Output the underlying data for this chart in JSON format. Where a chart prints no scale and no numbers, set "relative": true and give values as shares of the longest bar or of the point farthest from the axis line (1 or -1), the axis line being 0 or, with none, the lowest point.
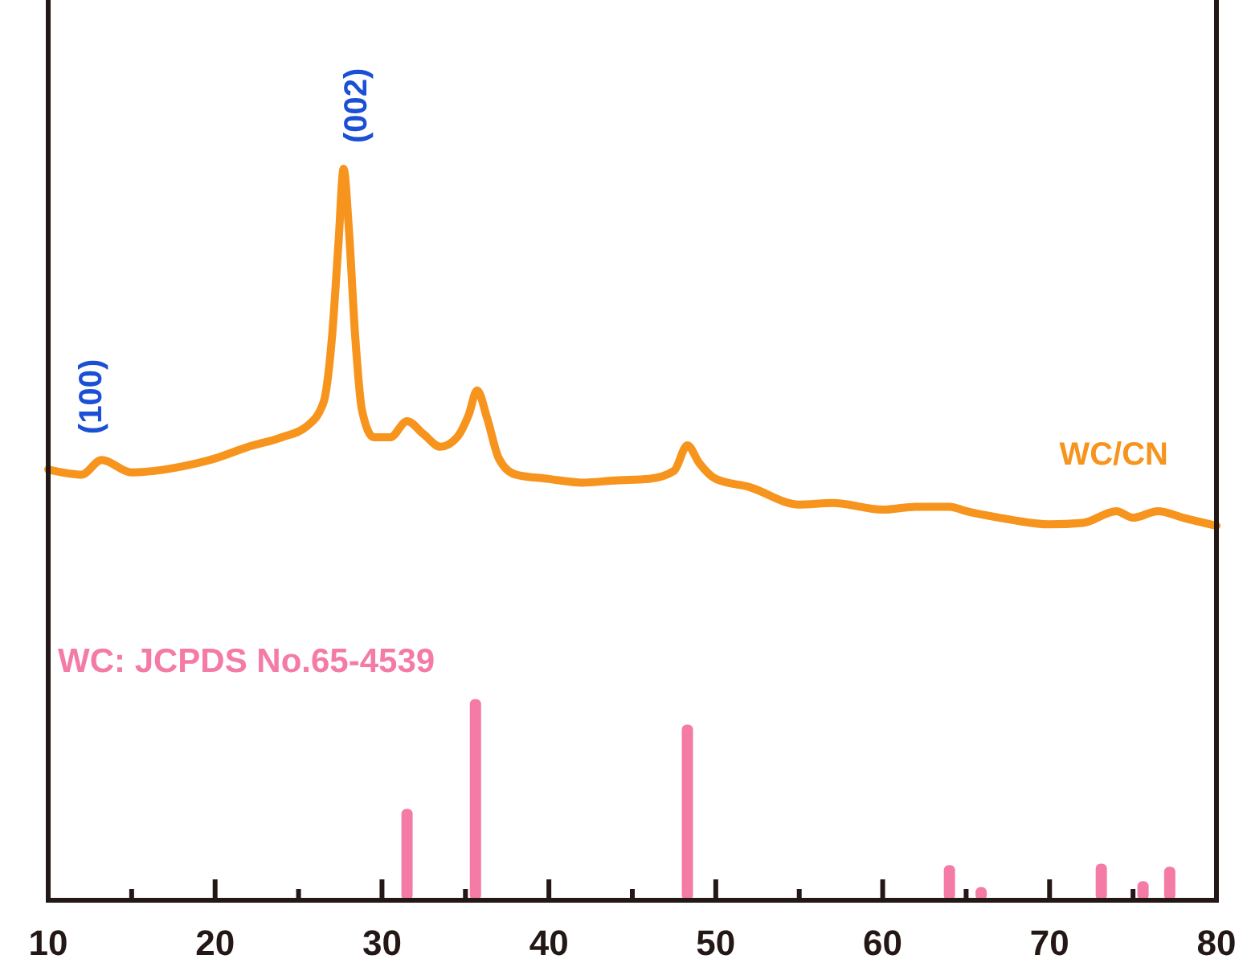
{
  "chart_data": {
    "type": "line",
    "relative": true,
    "xlim": [
      10,
      80
    ],
    "xticks": [
      10,
      {
        "value": 15,
        "label": null
      },
      20,
      {
        "value": 25,
        "label": null
      },
      30,
      {
        "value": 35,
        "label": null
      },
      40,
      {
        "value": 45,
        "label": null
      },
      50,
      {
        "value": 55,
        "label": null
      },
      60,
      {
        "value": 65,
        "label": null
      },
      70,
      {
        "value": 75,
        "label": null
      },
      80
    ],
    "series": [
      {
        "name": "WC/CN",
        "color": "#f7941d",
        "x": [
          10,
          12,
          13.2,
          15,
          18,
          20,
          22,
          24,
          25.5,
          26.5,
          27,
          27.4,
          27.7,
          28,
          28.4,
          28.8,
          29.5,
          30.5,
          31.5,
          32.5,
          33.5,
          34.5,
          35.2,
          35.7,
          36.3,
          37,
          38,
          40,
          42,
          44,
          46,
          47.5,
          48.3,
          49,
          50,
          52,
          55,
          57,
          60,
          62,
          64,
          65,
          67,
          70,
          72,
          74,
          75,
          76.5,
          78,
          80
        ],
        "values": [
          0.589,
          0.582,
          0.602,
          0.585,
          0.593,
          0.604,
          0.62,
          0.633,
          0.648,
          0.681,
          0.769,
          0.901,
          1,
          0.923,
          0.769,
          0.67,
          0.633,
          0.633,
          0.655,
          0.637,
          0.62,
          0.633,
          0.664,
          0.697,
          0.659,
          0.604,
          0.582,
          0.576,
          0.571,
          0.574,
          0.576,
          0.587,
          0.622,
          0.598,
          0.576,
          0.565,
          0.541,
          0.543,
          0.534,
          0.538,
          0.538,
          0.532,
          0.523,
          0.514,
          0.516,
          0.532,
          0.523,
          0.532,
          0.523,
          0.512
        ]
      },
      {
        "name": "WC: JCPDS No.65-4539",
        "type": "bar",
        "color": "#f47ba6",
        "x": [
          31.5,
          35.6,
          48.3,
          64.0,
          65.9,
          73.1,
          75.6,
          77.2
        ],
        "values": [
          0.125,
          0.275,
          0.24,
          0.048,
          0.018,
          0.05,
          0.026,
          0.046
        ]
      }
    ],
    "annotations": [
      {
        "text": "(100)",
        "x": 13.2,
        "y": 0.602
      },
      {
        "text": "(002)",
        "x": 27.7,
        "y": 1
      }
    ],
    "grid": false,
    "marker": "none",
    "line_style": "solid"
  }
}
